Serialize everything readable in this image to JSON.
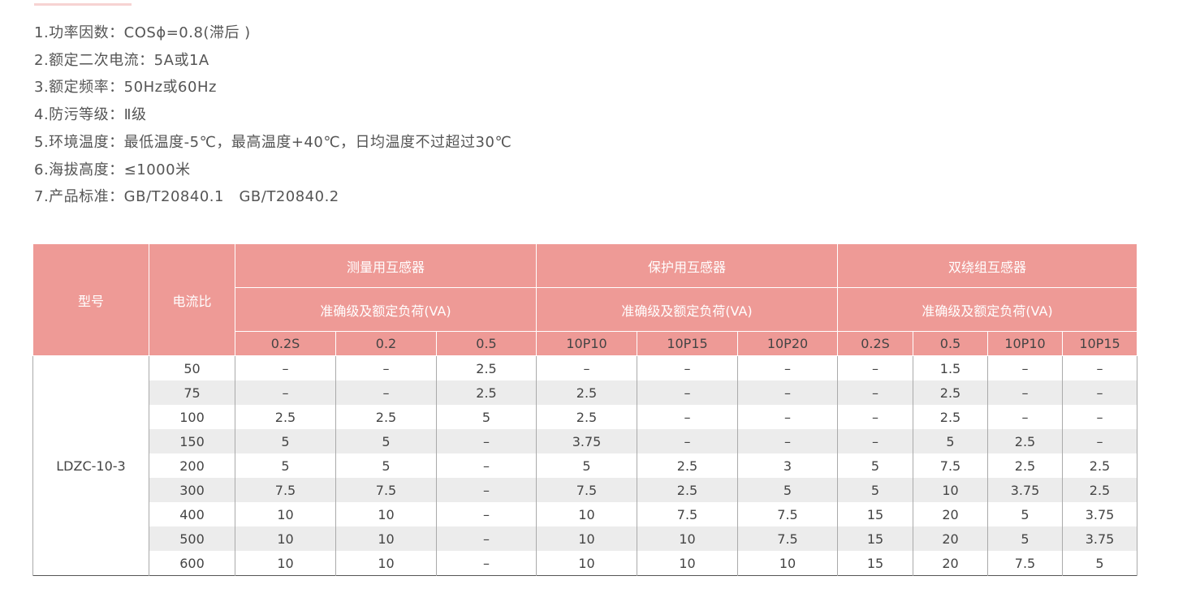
{
  "specs": [
    "1.功率因数：COSϕ=0.8(滞后 )",
    "2.额定二次电流：5A或1A",
    "3.额定频率：50Hz或60Hz",
    "4.防污等级：Ⅱ级",
    "5.环境温度：最低温度-5℃，最高温度+40℃，日均温度不过超过30℃",
    "6.海拔高度：≤1000米",
    "7.产品标准：GB/T20840.1　GB/T20840.2"
  ],
  "table": {
    "model_header": "型号",
    "ratio_header": "电流比",
    "groups": [
      {
        "name": "测量用互感器",
        "sub": "准确级及额定负荷(VA)"
      },
      {
        "name": "保护用互感器",
        "sub": "准确级及额定负荷(VA)"
      },
      {
        "name": "双绕组互感器",
        "sub": "准确级及额定负荷(VA)"
      }
    ],
    "columns": [
      "0.2S",
      "0.2",
      "0.5",
      "10P10",
      "10P15",
      "10P20",
      "0.2S",
      "0.5",
      "10P10",
      "10P15"
    ],
    "model": "LDZC-10-3",
    "rows": [
      [
        "50",
        "–",
        "–",
        "2.5",
        "–",
        "–",
        "–",
        "–",
        "1.5",
        "–",
        "–"
      ],
      [
        "75",
        "–",
        "–",
        "2.5",
        "2.5",
        "–",
        "–",
        "–",
        "2.5",
        "–",
        "–"
      ],
      [
        "100",
        "2.5",
        "2.5",
        "5",
        "2.5",
        "–",
        "–",
        "–",
        "2.5",
        "–",
        "–"
      ],
      [
        "150",
        "5",
        "5",
        "–",
        "3.75",
        "–",
        "–",
        "–",
        "5",
        "2.5",
        "–"
      ],
      [
        "200",
        "5",
        "5",
        "–",
        "5",
        "2.5",
        "3",
        "5",
        "7.5",
        "2.5",
        "2.5"
      ],
      [
        "300",
        "7.5",
        "7.5",
        "–",
        "7.5",
        "2.5",
        "5",
        "5",
        "10",
        "3.75",
        "2.5"
      ],
      [
        "400",
        "10",
        "10",
        "–",
        "10",
        "7.5",
        "7.5",
        "15",
        "20",
        "5",
        "3.75"
      ],
      [
        "500",
        "10",
        "10",
        "–",
        "10",
        "10",
        "7.5",
        "15",
        "20",
        "5",
        "3.75"
      ],
      [
        "600",
        "10",
        "10",
        "–",
        "10",
        "10",
        "10",
        "15",
        "20",
        "7.5",
        "5"
      ]
    ]
  },
  "colors": {
    "header_bg": "#ee9a96",
    "stripe": "#ececec"
  }
}
